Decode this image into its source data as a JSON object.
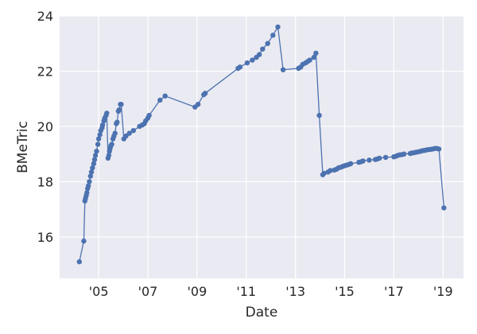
{
  "chart_data": {
    "type": "line",
    "title": "",
    "xlabel": "Date",
    "ylabel": "BMeTric",
    "xlim": [
      "2003-06-01",
      "2019-11-01"
    ],
    "ylim": [
      14.5,
      24.0
    ],
    "x_ticks": [
      {
        "value": "2005-01-01",
        "label": "'05"
      },
      {
        "value": "2007-01-01",
        "label": "'07"
      },
      {
        "value": "2009-01-01",
        "label": "'09"
      },
      {
        "value": "2011-01-01",
        "label": "'11"
      },
      {
        "value": "2013-01-01",
        "label": "'13"
      },
      {
        "value": "2015-01-01",
        "label": "'15"
      },
      {
        "value": "2017-01-01",
        "label": "'17"
      },
      {
        "value": "2019-01-01",
        "label": "'19"
      }
    ],
    "y_ticks": [
      16,
      18,
      20,
      22,
      24
    ],
    "grid": true,
    "style": {
      "background": "#EAEAF2",
      "line_color": "#4C72B0",
      "grid_color": "#FFFFFF"
    },
    "series": [
      {
        "name": "",
        "x": [
          "2004-03-20",
          "2004-05-25",
          "2004-06-10",
          "2004-06-20",
          "2004-07-01",
          "2004-07-10",
          "2004-07-20",
          "2004-08-01",
          "2004-08-15",
          "2004-09-01",
          "2004-09-15",
          "2004-10-01",
          "2004-10-20",
          "2004-11-01",
          "2004-11-15",
          "2004-12-01",
          "2004-12-20",
          "2005-01-01",
          "2005-01-20",
          "2005-02-01",
          "2005-02-20",
          "2005-03-01",
          "2005-03-20",
          "2005-04-01",
          "2005-04-20",
          "2005-05-01",
          "2005-05-20",
          "2005-06-01",
          "2005-06-10",
          "2005-06-20",
          "2005-07-01",
          "2005-07-15",
          "2005-08-01",
          "2005-08-15",
          "2005-09-01",
          "2005-09-20",
          "2005-10-01",
          "2005-10-20",
          "2005-11-01",
          "2005-11-20",
          "2005-12-01",
          "2006-01-10",
          "2006-02-10",
          "2006-04-01",
          "2006-06-01",
          "2006-09-01",
          "2006-10-10",
          "2006-11-10",
          "2006-12-01",
          "2007-01-01",
          "2007-01-20",
          "2007-07-01",
          "2007-09-15",
          "2008-12-01",
          "2009-01-15",
          "2009-04-10",
          "2009-05-01",
          "2010-09-01",
          "2010-10-01",
          "2011-01-15",
          "2011-04-01",
          "2011-06-01",
          "2011-07-15",
          "2011-09-01",
          "2011-11-15",
          "2012-02-01",
          "2012-04-15",
          "2012-07-01",
          "2013-02-15",
          "2013-03-20",
          "2013-04-20",
          "2013-06-01",
          "2013-07-01",
          "2013-08-01",
          "2013-10-01",
          "2013-11-01",
          "2013-12-20",
          "2014-02-10",
          "2014-03-01",
          "2014-05-01",
          "2014-06-01",
          "2014-08-01",
          "2014-09-01",
          "2014-10-01",
          "2014-11-01",
          "2014-12-01",
          "2015-01-01",
          "2015-02-01",
          "2015-03-01",
          "2015-04-01",
          "2015-08-01",
          "2015-09-01",
          "2015-10-01",
          "2016-01-01",
          "2016-04-01",
          "2016-05-01",
          "2016-06-01",
          "2016-09-01",
          "2017-01-01",
          "2017-02-01",
          "2017-03-01",
          "2017-04-01",
          "2017-05-01",
          "2017-06-01",
          "2017-09-01",
          "2017-10-01",
          "2017-11-01",
          "2017-12-01",
          "2018-01-01",
          "2018-02-01",
          "2018-03-01",
          "2018-04-01",
          "2018-05-01",
          "2018-06-01",
          "2018-07-01",
          "2018-08-01",
          "2018-09-01",
          "2018-10-01",
          "2018-11-01",
          "2019-01-15"
        ],
        "y": [
          15.1,
          15.85,
          17.3,
          17.4,
          17.5,
          17.6,
          17.75,
          17.85,
          18.0,
          18.2,
          18.35,
          18.5,
          18.65,
          18.8,
          18.95,
          19.1,
          19.35,
          19.55,
          19.7,
          19.85,
          19.95,
          20.05,
          20.2,
          20.3,
          20.4,
          20.48,
          18.85,
          18.95,
          19.1,
          19.2,
          19.3,
          19.35,
          19.55,
          19.65,
          19.75,
          20.1,
          20.15,
          20.55,
          20.6,
          20.8,
          20.8,
          19.55,
          19.65,
          19.75,
          19.85,
          20.0,
          20.05,
          20.1,
          20.2,
          20.3,
          20.4,
          20.95,
          21.1,
          20.7,
          20.8,
          21.15,
          21.2,
          22.1,
          22.15,
          22.3,
          22.4,
          22.5,
          22.6,
          22.8,
          23.0,
          23.3,
          23.6,
          22.05,
          22.1,
          22.15,
          22.25,
          22.3,
          22.35,
          22.4,
          22.5,
          22.65,
          20.4,
          18.25,
          18.3,
          18.35,
          18.4,
          18.42,
          18.45,
          18.5,
          18.52,
          18.55,
          18.58,
          18.6,
          18.62,
          18.65,
          18.7,
          18.72,
          18.75,
          18.78,
          18.8,
          18.82,
          18.85,
          18.88,
          18.9,
          18.92,
          18.95,
          18.97,
          18.98,
          19.0,
          19.02,
          19.04,
          19.05,
          19.07,
          19.08,
          19.1,
          19.12,
          19.13,
          19.15,
          19.16,
          19.17,
          19.18,
          19.2,
          19.2,
          19.18,
          17.05
        ]
      }
    ]
  }
}
